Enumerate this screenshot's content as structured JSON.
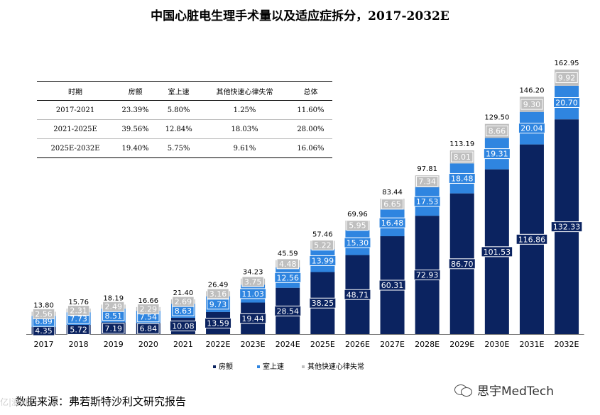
{
  "title": "中国心脏电生理手术量以及适应症拆分，2017-2032E",
  "source": "数据来源：弗若斯特沙利文研究报告",
  "watermark": "亿|澎湃",
  "brand": "思宇MedTech",
  "colors": {
    "navy": "#0b2360",
    "blue": "#2f85e0",
    "gray": "#bfbfbf"
  },
  "growth_table": {
    "headers": [
      "时期",
      "房颤",
      "室上速",
      "其他快速心律失常",
      "总体"
    ],
    "rows": [
      [
        "2017-2021",
        "23.39%",
        "5.80%",
        "1.25%",
        "11.60%"
      ],
      [
        "2021-2025E",
        "39.56%",
        "12.84%",
        "18.03%",
        "28.00%"
      ],
      [
        "2025E-2032E",
        "19.40%",
        "5.75%",
        "9.61%",
        "16.06%"
      ]
    ]
  },
  "chart_data": {
    "type": "bar",
    "stacked": true,
    "title": "中国心脏电生理手术量以及适应症拆分，2017-2032E",
    "categories": [
      "2017",
      "2018",
      "2019",
      "2020",
      "2021",
      "2022E",
      "2023E",
      "2024E",
      "2025E",
      "2026E",
      "2027E",
      "2028E",
      "2029E",
      "2030E",
      "2031E",
      "2032E"
    ],
    "series": [
      {
        "name": "房颤",
        "color": "#0b2360",
        "values": [
          4.35,
          5.72,
          7.19,
          6.84,
          10.08,
          13.59,
          19.44,
          28.54,
          38.25,
          48.71,
          60.31,
          72.93,
          86.7,
          101.53,
          116.86,
          132.33
        ]
      },
      {
        "name": "室上速",
        "color": "#2f85e0",
        "values": [
          6.89,
          7.73,
          8.51,
          7.54,
          8.63,
          9.73,
          11.03,
          12.56,
          13.99,
          15.3,
          16.48,
          17.53,
          18.48,
          19.31,
          20.04,
          20.7
        ]
      },
      {
        "name": "其他快速心律失常",
        "color": "#bfbfbf",
        "values": [
          2.56,
          2.31,
          2.49,
          2.29,
          2.69,
          3.16,
          3.75,
          4.48,
          5.22,
          5.95,
          6.65,
          7.34,
          8.01,
          8.66,
          9.3,
          9.92
        ]
      }
    ],
    "totals": [
      "13.80",
      "15.76",
      "18.19",
      "16.66",
      "21.40",
      "26.49",
      "34.23",
      "45.59",
      "57.46",
      "69.96",
      "83.44",
      "97.81",
      "113.19",
      "129.50",
      "146.20",
      "162.95"
    ],
    "ylim": [
      0,
      170
    ],
    "legend_position": "bottom-center",
    "xlabel": "",
    "ylabel": ""
  }
}
